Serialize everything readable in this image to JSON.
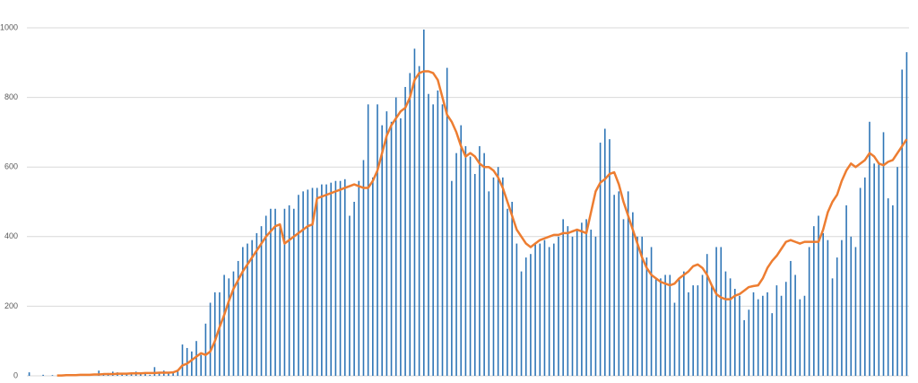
{
  "chart_data": {
    "type": "bar-line",
    "categories": [
      null,
      null,
      null,
      null,
      null,
      null,
      null,
      null,
      null,
      null,
      null,
      null,
      null,
      null,
      null,
      null,
      null,
      null,
      null,
      null,
      null,
      null,
      null,
      null,
      null,
      null,
      null,
      null,
      null,
      null,
      null,
      null,
      null,
      null,
      null,
      null,
      null,
      null,
      null,
      null,
      null,
      null,
      null,
      null,
      null,
      null,
      null,
      null,
      null,
      null,
      null,
      null,
      null,
      null,
      null,
      null,
      null,
      null,
      null,
      null,
      null,
      null,
      null,
      null,
      null,
      null,
      null,
      null,
      null,
      null,
      null,
      null,
      null,
      null,
      null,
      null,
      null,
      null,
      null,
      null,
      null,
      null,
      null,
      null,
      null,
      null,
      null,
      null,
      null,
      null,
      null,
      null,
      null,
      null,
      null,
      null,
      null,
      null,
      null,
      null,
      null,
      null,
      null,
      null,
      null,
      null,
      null,
      null,
      null,
      null,
      null,
      null,
      null,
      null,
      null,
      null,
      null,
      null,
      null,
      null,
      null,
      null,
      null,
      null,
      null,
      null,
      null,
      null,
      null,
      null,
      null,
      null,
      null,
      null,
      null,
      null,
      null,
      null,
      null,
      null,
      null,
      null,
      null,
      null,
      null,
      null,
      null,
      null,
      null,
      null,
      null,
      null,
      null,
      null,
      null,
      null,
      null,
      null,
      null,
      null,
      null,
      null,
      null,
      null,
      null,
      null,
      null,
      null,
      null,
      null,
      null,
      null,
      null,
      null,
      null,
      null,
      null,
      null,
      null,
      null,
      null,
      null,
      null,
      null,
      null,
      null,
      null,
      null,
      null,
      null
    ],
    "series": [
      {
        "kind": "bar",
        "color": "#2e75b6",
        "values": [
          10,
          0,
          0,
          3,
          0,
          2,
          0,
          1,
          0,
          3,
          0,
          2,
          0,
          5,
          0,
          15,
          5,
          8,
          12,
          10,
          6,
          8,
          5,
          12,
          5,
          8,
          3,
          25,
          10,
          15,
          8,
          10,
          12,
          90,
          80,
          70,
          100,
          60,
          150,
          210,
          240,
          240,
          290,
          280,
          300,
          330,
          370,
          380,
          390,
          410,
          430,
          460,
          480,
          480,
          430,
          480,
          490,
          480,
          520,
          530,
          535,
          540,
          540,
          550,
          550,
          555,
          560,
          560,
          565,
          460,
          500,
          560,
          620,
          780,
          570,
          780,
          720,
          760,
          730,
          800,
          740,
          830,
          870,
          940,
          890,
          995,
          810,
          780,
          820,
          780,
          885,
          560,
          640,
          720,
          660,
          630,
          580,
          660,
          640,
          530,
          570,
          600,
          570,
          480,
          500,
          380,
          300,
          340,
          350,
          380,
          380,
          390,
          370,
          380,
          400,
          450,
          430,
          400,
          420,
          440,
          450,
          420,
          400,
          670,
          710,
          680,
          520,
          530,
          450,
          530,
          470,
          400,
          400,
          340,
          370,
          280,
          280,
          290,
          290,
          210,
          280,
          300,
          240,
          260,
          260,
          290,
          350,
          260,
          370,
          370,
          300,
          280,
          250,
          230,
          160,
          190,
          240,
          220,
          230,
          240,
          180,
          260,
          230,
          270,
          330,
          290,
          220,
          230,
          370,
          430,
          460,
          410,
          390,
          280,
          340,
          390,
          490,
          400,
          370,
          540,
          570,
          730,
          610,
          610,
          700,
          510,
          490,
          600,
          880,
          930
        ]
      },
      {
        "kind": "line",
        "color": "#ed7d31",
        "values": [
          null,
          null,
          null,
          null,
          null,
          null,
          1,
          1,
          2,
          2,
          2,
          3,
          3,
          3,
          4,
          4,
          5,
          5,
          5,
          6,
          6,
          6,
          7,
          7,
          7,
          8,
          8,
          8,
          9,
          9,
          9,
          10,
          15,
          30,
          35,
          45,
          55,
          65,
          60,
          70,
          100,
          140,
          175,
          215,
          250,
          275,
          300,
          320,
          340,
          360,
          380,
          400,
          415,
          430,
          435,
          380,
          390,
          400,
          410,
          420,
          430,
          435,
          510,
          515,
          520,
          525,
          530,
          535,
          540,
          545,
          550,
          545,
          540,
          540,
          560,
          590,
          640,
          690,
          720,
          740,
          760,
          770,
          800,
          850,
          870,
          875,
          875,
          870,
          850,
          800,
          750,
          730,
          700,
          660,
          630,
          640,
          630,
          610,
          600,
          600,
          590,
          570,
          540,
          500,
          460,
          420,
          400,
          380,
          370,
          380,
          390,
          395,
          400,
          405,
          405,
          410,
          410,
          415,
          420,
          415,
          410,
          470,
          530,
          555,
          565,
          580,
          585,
          550,
          500,
          460,
          420,
          380,
          340,
          310,
          290,
          280,
          270,
          265,
          260,
          265,
          280,
          290,
          300,
          315,
          320,
          310,
          290,
          260,
          235,
          225,
          220,
          220,
          230,
          235,
          245,
          255,
          258,
          260,
          280,
          310,
          330,
          345,
          365,
          385,
          390,
          385,
          380,
          385,
          385,
          385,
          385,
          420,
          470,
          500,
          520,
          560,
          590,
          610,
          600,
          610,
          620,
          640,
          630,
          610,
          605,
          615,
          620,
          640,
          660,
          680
        ]
      }
    ],
    "ylim": [
      0,
      1000
    ],
    "yticks": [
      0,
      200,
      400,
      600,
      800,
      1000
    ],
    "grid": true
  }
}
